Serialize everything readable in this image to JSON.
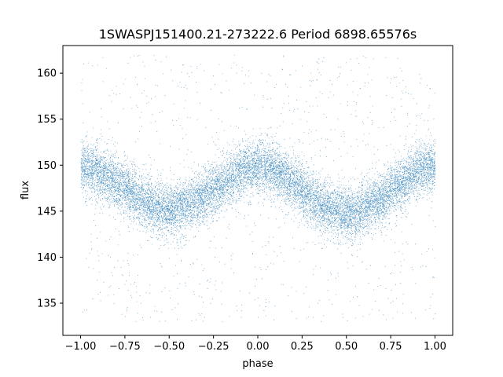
{
  "chart_data": {
    "type": "scatter",
    "title": "1SWASPJ151400.21-273222.6 Period 6898.65576s",
    "xlabel": "phase",
    "ylabel": "flux",
    "xlim": [
      -1.1,
      1.1
    ],
    "ylim": [
      131.5,
      163
    ],
    "xticks": [
      -1.0,
      -0.75,
      -0.5,
      -0.25,
      0.0,
      0.25,
      0.5,
      0.75,
      1.0
    ],
    "xtick_labels": [
      "−1.00",
      "−0.75",
      "−0.50",
      "−0.25",
      "0.00",
      "0.25",
      "0.50",
      "0.75",
      "1.00"
    ],
    "yticks": [
      135,
      140,
      145,
      150,
      155,
      160
    ],
    "ytick_labels": [
      "135",
      "140",
      "145",
      "150",
      "155",
      "160"
    ],
    "grid": false,
    "marker_color": "#1f77b4",
    "trend_model": {
      "description_values": "flux vs phase folded light curve",
      "x": [
        -1.0,
        -0.9,
        -0.8,
        -0.7,
        -0.6,
        -0.5,
        -0.4,
        -0.3,
        -0.2,
        -0.1,
        0.0,
        0.1,
        0.2,
        0.3,
        0.4,
        0.5,
        0.6,
        0.7,
        0.8,
        0.9,
        1.0
      ],
      "y": [
        150.0,
        149.4,
        148.2,
        146.8,
        145.6,
        145.2,
        145.6,
        146.6,
        148.0,
        149.4,
        150.0,
        149.4,
        148.0,
        146.4,
        145.2,
        144.8,
        145.2,
        146.4,
        148.0,
        149.4,
        150.0
      ],
      "band_sigma": 1.4,
      "outlier_range": [
        133,
        162
      ]
    }
  }
}
